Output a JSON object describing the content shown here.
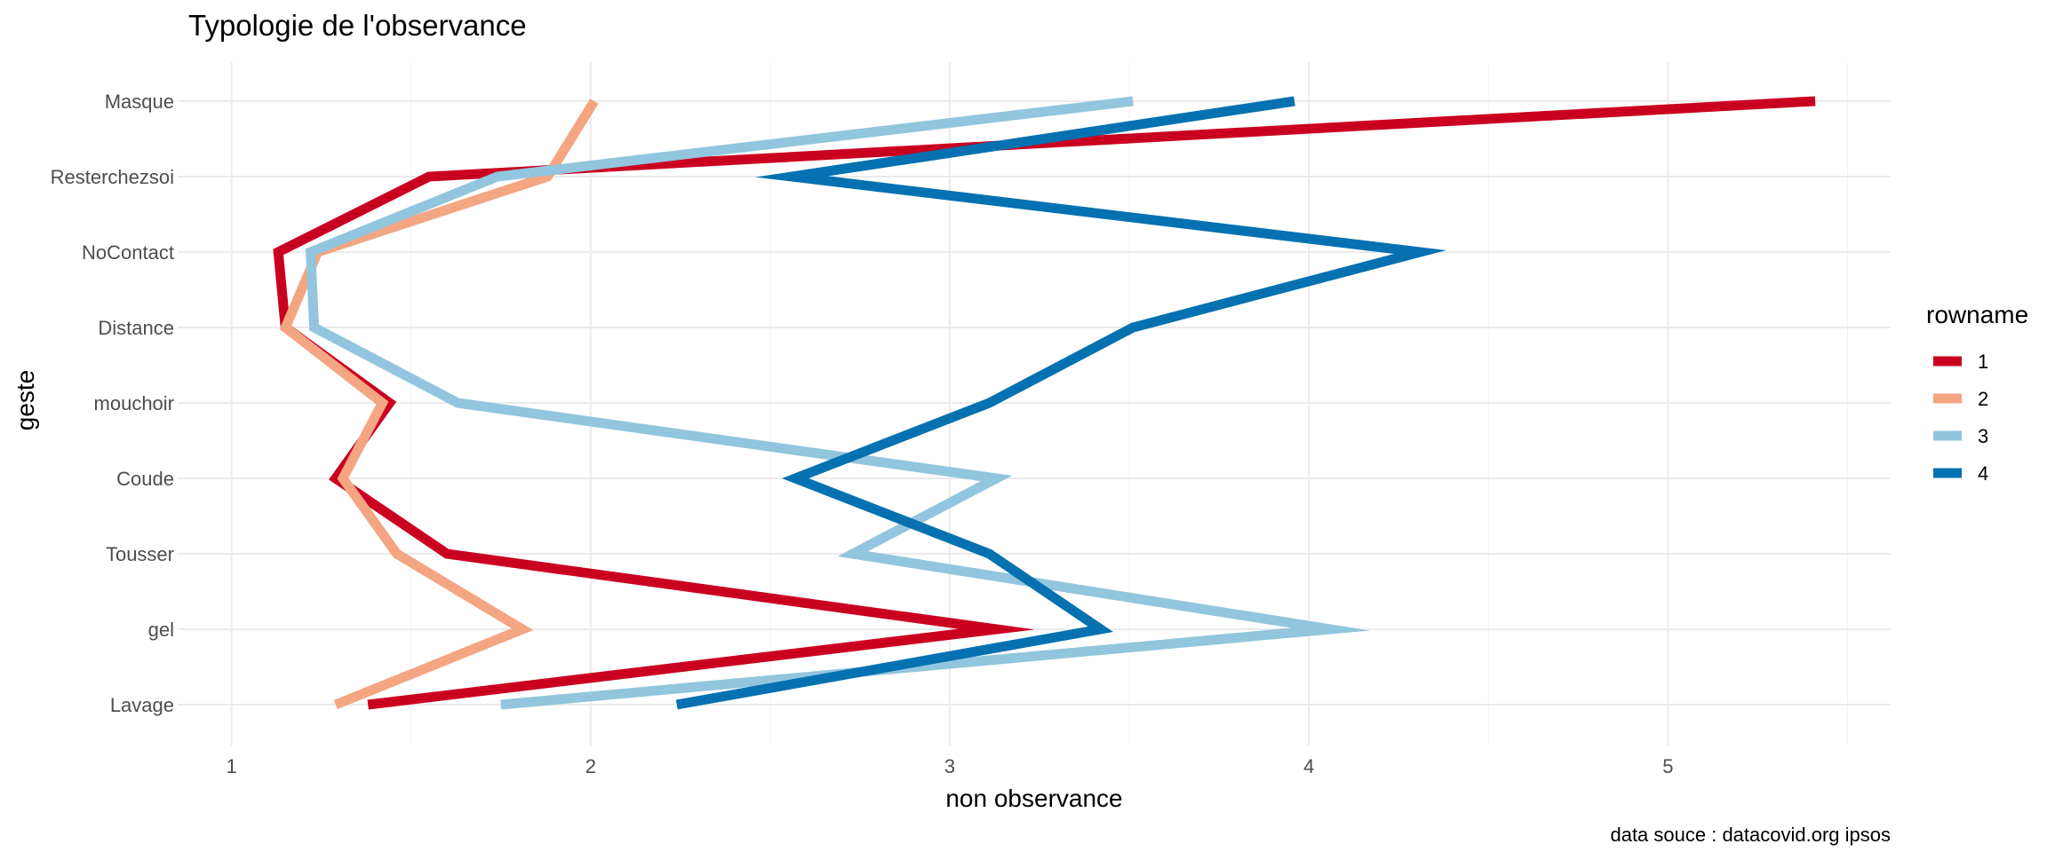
{
  "chart_data": {
    "type": "line",
    "title": "Typologie de l'observance",
    "xlabel": "non observance",
    "ylabel": "geste",
    "caption": "data souce : datacovid.org ipsos",
    "xlim": [
      0.85,
      5.62
    ],
    "x_ticks": [
      1,
      2,
      3,
      4,
      5
    ],
    "y_categories": [
      "Lavage",
      "gel",
      "Tousser",
      "Coude",
      "mouchoir",
      "Distance",
      "NoContact",
      "Resterchezsoi",
      "Masque"
    ],
    "grid": true,
    "legend": {
      "title": "rowname",
      "position": "right"
    },
    "series": [
      {
        "name": "1",
        "color": "#ca0020",
        "values": [
          1.38,
          3.13,
          1.6,
          1.29,
          1.44,
          1.15,
          1.13,
          1.55,
          5.41
        ]
      },
      {
        "name": "2",
        "color": "#f4a582",
        "values": [
          1.29,
          1.81,
          1.46,
          1.31,
          1.42,
          1.15,
          1.24,
          1.88,
          2.01
        ]
      },
      {
        "name": "3",
        "color": "#92c5de",
        "values": [
          1.75,
          4.06,
          2.73,
          3.13,
          1.63,
          1.23,
          1.22,
          1.74,
          3.51
        ]
      },
      {
        "name": "4",
        "color": "#0571b0",
        "values": [
          2.24,
          3.42,
          3.11,
          2.57,
          3.11,
          3.51,
          4.31,
          2.56,
          3.96
        ]
      }
    ]
  }
}
